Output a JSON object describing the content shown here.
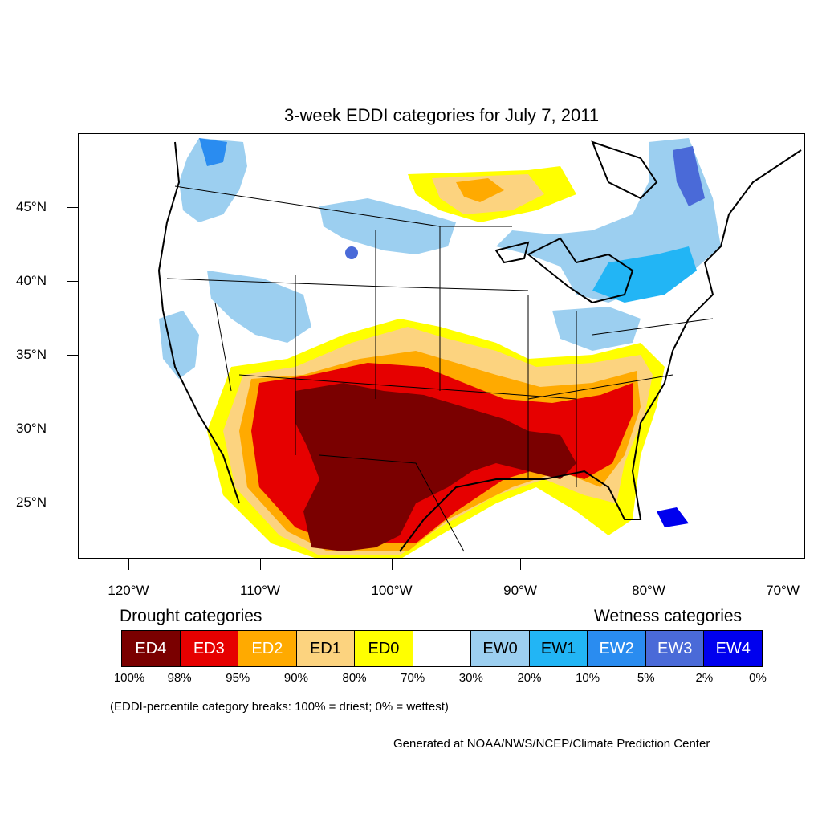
{
  "title": "3-week EDDI categories for July 7, 2011",
  "latitude_labels": [
    "45°N",
    "40°N",
    "35°N",
    "30°N",
    "25°N"
  ],
  "longitude_labels": [
    "120°W",
    "110°W",
    "100°W",
    "90°W",
    "80°W",
    "70°W"
  ],
  "legend": {
    "drought_heading": "Drought categories",
    "wetness_heading": "Wetness categories",
    "categories": [
      {
        "label": "ED4",
        "color": "#7a0000",
        "text_color": "#ffffff"
      },
      {
        "label": "ED3",
        "color": "#e60000",
        "text_color": "#ffffff"
      },
      {
        "label": "ED2",
        "color": "#ffaa00",
        "text_color": "#ffffff"
      },
      {
        "label": "ED1",
        "color": "#fcd37f",
        "text_color": "#000000"
      },
      {
        "label": "ED0",
        "color": "#ffff00",
        "text_color": "#000000"
      },
      {
        "label": "",
        "color": "#ffffff",
        "text_color": "#000000"
      },
      {
        "label": "EW0",
        "color": "#9ccff0",
        "text_color": "#000000"
      },
      {
        "label": "EW1",
        "color": "#22b5f5",
        "text_color": "#000000"
      },
      {
        "label": "EW2",
        "color": "#2a8cf0",
        "text_color": "#ffffff"
      },
      {
        "label": "EW3",
        "color": "#4a6ad8",
        "text_color": "#ffffff"
      },
      {
        "label": "EW4",
        "color": "#0000ee",
        "text_color": "#ffffff"
      }
    ],
    "percent_breaks": [
      "100%",
      "98%",
      "95%",
      "90%",
      "80%",
      "70%",
      "30%",
      "20%",
      "10%",
      "5%",
      "2%",
      "0%"
    ]
  },
  "note": "(EDDI-percentile category breaks: 100% = driest; 0% = wettest)",
  "credit": "Generated at NOAA/NWS/NCEP/Climate Prediction Center"
}
